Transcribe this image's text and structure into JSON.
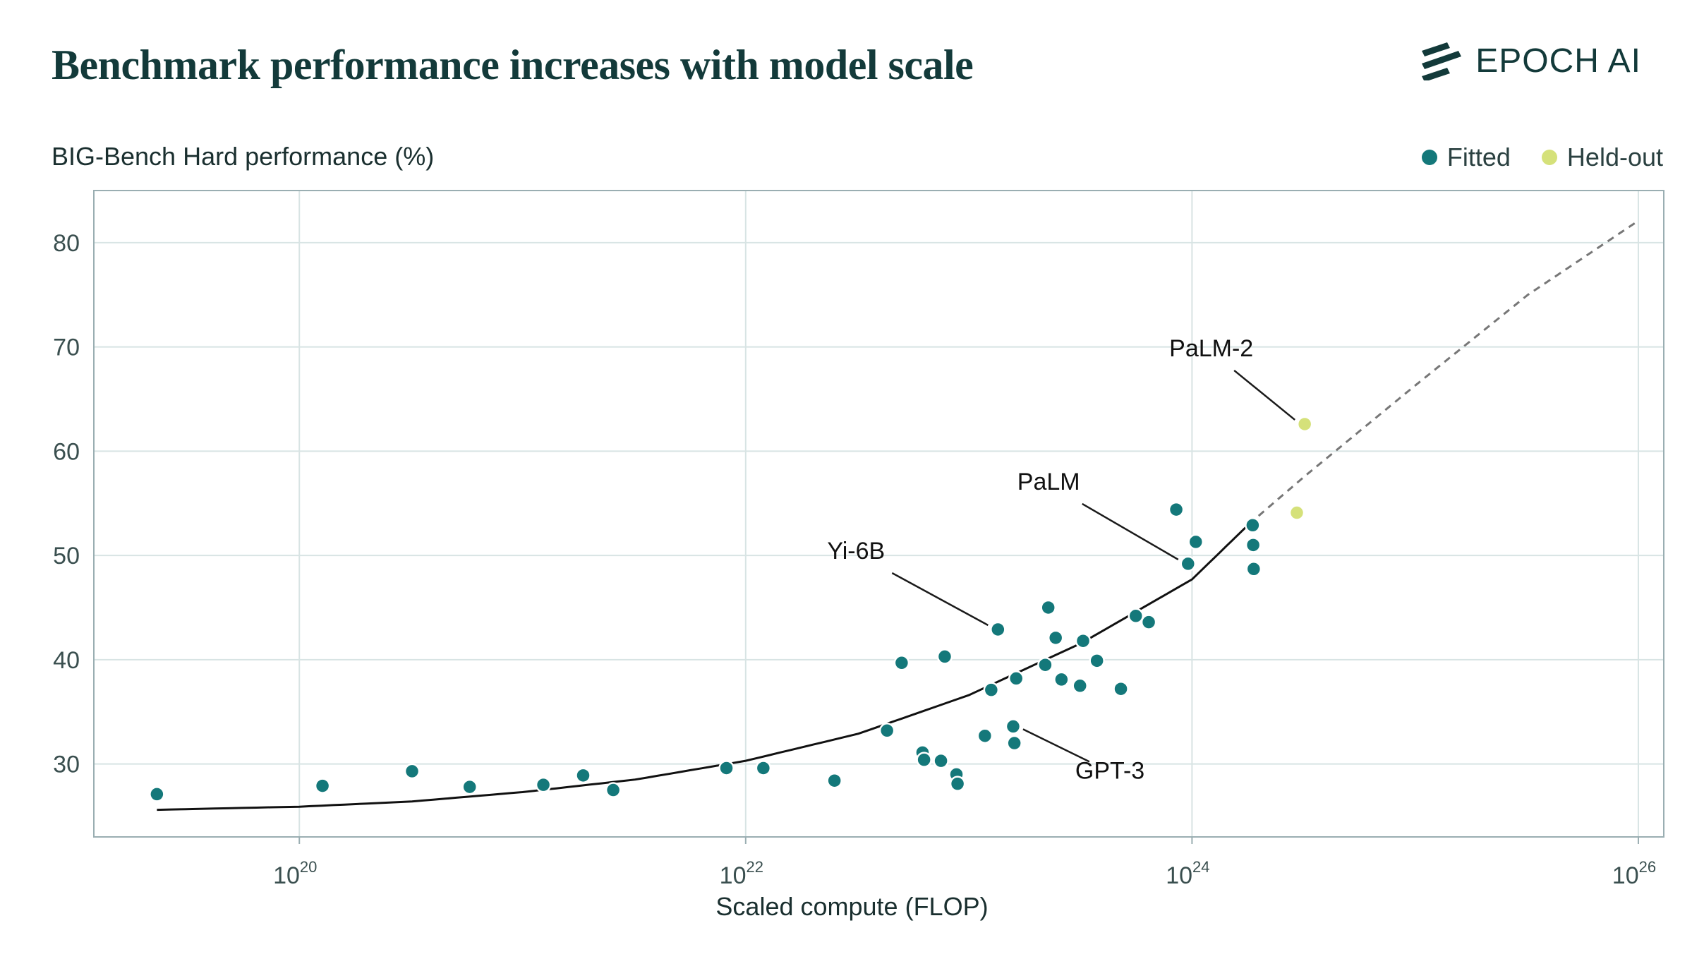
{
  "header": {
    "title": "Benchmark performance increases with model scale",
    "brand": "EPOCH AI"
  },
  "legend": {
    "fitted_label": "Fitted",
    "heldout_label": "Held-out"
  },
  "colors": {
    "fitted": "#14787a",
    "heldout": "#d5e17a",
    "title": "#133a3a",
    "grid": "#d8e4e4",
    "frame": "#9aaeb2",
    "fit_line": "#111111",
    "extrapolation": "#777777"
  },
  "chart_data": {
    "type": "scatter",
    "title": "Benchmark performance increases with model scale",
    "ylabel": "BIG-Bench Hard performance (%)",
    "xlabel": "Scaled compute (FLOP)",
    "x_scale": "log10",
    "xlim": [
      1.2e+19,
      1.3e+26
    ],
    "ylim": [
      23,
      85
    ],
    "x_ticks": [
      {
        "value": 1e+20,
        "base": "10",
        "exp": "20"
      },
      {
        "value": 1e+22,
        "base": "10",
        "exp": "22"
      },
      {
        "value": 1e+24,
        "base": "10",
        "exp": "24"
      },
      {
        "value": 1e+26,
        "base": "10",
        "exp": "26"
      }
    ],
    "y_ticks": [
      30,
      40,
      50,
      60,
      70,
      80
    ],
    "grid": true,
    "legend_position": "top-right",
    "series": [
      {
        "name": "Fitted",
        "points": [
          {
            "x": 2.3e+19,
            "y": 27.1
          },
          {
            "x": 1.27e+20,
            "y": 27.9
          },
          {
            "x": 3.2e+20,
            "y": 29.3
          },
          {
            "x": 5.8e+20,
            "y": 27.8
          },
          {
            "x": 1.24e+21,
            "y": 28.0
          },
          {
            "x": 1.87e+21,
            "y": 28.9
          },
          {
            "x": 2.55e+21,
            "y": 27.5
          },
          {
            "x": 8.2e+21,
            "y": 29.6
          },
          {
            "x": 1.2e+22,
            "y": 29.6
          },
          {
            "x": 2.5e+22,
            "y": 28.4
          },
          {
            "x": 4.3e+22,
            "y": 33.2
          },
          {
            "x": 5e+22,
            "y": 39.7
          },
          {
            "x": 6.2e+22,
            "y": 31.1
          },
          {
            "x": 6.3e+22,
            "y": 30.4
          },
          {
            "x": 7.5e+22,
            "y": 30.3
          },
          {
            "x": 7.8e+22,
            "y": 40.3
          },
          {
            "x": 8.8e+22,
            "y": 29.0
          },
          {
            "x": 8.9e+22,
            "y": 28.1
          },
          {
            "x": 1.18e+23,
            "y": 32.7
          },
          {
            "x": 1.26e+23,
            "y": 37.1
          },
          {
            "x": 1.35e+23,
            "y": 42.9
          },
          {
            "x": 1.58e+23,
            "y": 33.6
          },
          {
            "x": 1.6e+23,
            "y": 32.0
          },
          {
            "x": 1.63e+23,
            "y": 38.2
          },
          {
            "x": 2.2e+23,
            "y": 39.5
          },
          {
            "x": 2.27e+23,
            "y": 45.0
          },
          {
            "x": 2.45e+23,
            "y": 42.1
          },
          {
            "x": 2.6e+23,
            "y": 38.1
          },
          {
            "x": 3.15e+23,
            "y": 37.5
          },
          {
            "x": 3.25e+23,
            "y": 41.8
          },
          {
            "x": 3.75e+23,
            "y": 39.9
          },
          {
            "x": 4.8e+23,
            "y": 37.2
          },
          {
            "x": 5.6e+23,
            "y": 44.2
          },
          {
            "x": 6.4e+23,
            "y": 43.6
          },
          {
            "x": 8.5e+23,
            "y": 54.4
          },
          {
            "x": 9.6e+23,
            "y": 49.2
          },
          {
            "x": 1.04e+24,
            "y": 51.3
          },
          {
            "x": 1.87e+24,
            "y": 52.9
          },
          {
            "x": 1.88e+24,
            "y": 51.0
          },
          {
            "x": 1.89e+24,
            "y": 48.7
          }
        ]
      },
      {
        "name": "Held-out",
        "points": [
          {
            "x": 3.2e+24,
            "y": 62.6
          },
          {
            "x": 2.95e+24,
            "y": 54.1
          }
        ]
      }
    ],
    "fit_curve": [
      {
        "x": 2.3e+19,
        "y": 25.6
      },
      {
        "x": 1e+20,
        "y": 25.9
      },
      {
        "x": 3.2e+20,
        "y": 26.4
      },
      {
        "x": 1e+21,
        "y": 27.3
      },
      {
        "x": 3.2e+21,
        "y": 28.5
      },
      {
        "x": 1e+22,
        "y": 30.3
      },
      {
        "x": 3.2e+22,
        "y": 32.9
      },
      {
        "x": 1e+23,
        "y": 36.6
      },
      {
        "x": 3.2e+23,
        "y": 41.6
      },
      {
        "x": 1e+24,
        "y": 47.7
      },
      {
        "x": 1.8e+24,
        "y": 53.0
      }
    ],
    "extrapolation_curve": [
      {
        "x": 1.8e+24,
        "y": 53.0
      },
      {
        "x": 3.2e+24,
        "y": 57.6
      },
      {
        "x": 1e+25,
        "y": 66.3
      },
      {
        "x": 3.2e+25,
        "y": 75.0
      },
      {
        "x": 1e+26,
        "y": 82.1
      }
    ],
    "annotations": [
      {
        "text": "PaLM-2",
        "x": 3.2e+24,
        "y": 62.6,
        "anchor": "left",
        "tx_offset": -180,
        "ty_offset": -96
      },
      {
        "text": "PaLM",
        "x": 9.6e+23,
        "y": 49.2,
        "anchor": "left",
        "tx_offset": -230,
        "ty_offset": -105
      },
      {
        "text": "Yi-6B",
        "x": 1.35e+23,
        "y": 42.9,
        "anchor": "left",
        "tx_offset": -230,
        "ty_offset": -100
      },
      {
        "text": "GPT-3",
        "x": 1.58e+23,
        "y": 33.6,
        "anchor": "right",
        "tx_offset": 128,
        "ty_offset": 74
      }
    ]
  }
}
